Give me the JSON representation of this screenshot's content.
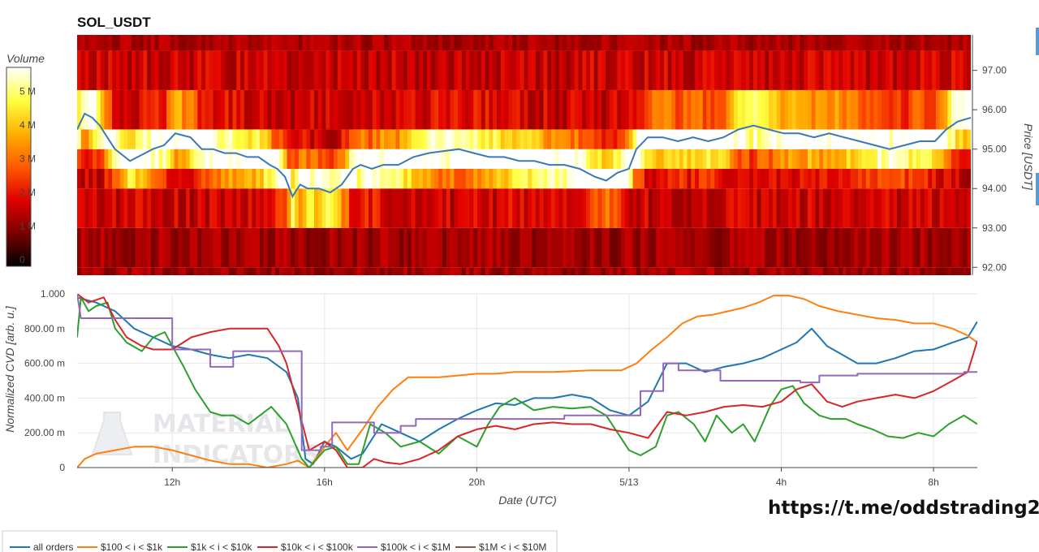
{
  "link_text": "https://t.me/oddstrading2",
  "watermark": {
    "line1": "MATERIAL",
    "line2": "INDICATORS"
  },
  "chart_data": [
    {
      "type": "heatmap",
      "title": "SOL_USDT",
      "ylabel": "Price [USDT]",
      "price_ticks": [
        "92.00",
        "93.00",
        "94.00",
        "95.00",
        "96.00",
        "97.00"
      ],
      "ylim": [
        91.8,
        97.9
      ],
      "price_bands": [
        92.0,
        93.0,
        94.0,
        94.5,
        95.0,
        95.5,
        96.5,
        97.5
      ],
      "colorbar": {
        "title": "Volume",
        "ticks": [
          {
            "value": 0,
            "label": "0"
          },
          {
            "value": 1,
            "label": "1 M"
          },
          {
            "value": 2,
            "label": "2 M"
          },
          {
            "value": 3,
            "label": "3 M"
          },
          {
            "value": 4,
            "label": "4 M"
          },
          {
            "value": 5,
            "label": "5 M"
          }
        ],
        "range": [
          0,
          5.9
        ],
        "colors": [
          "#000000",
          "#7a0000",
          "#e00000",
          "#ff5a00",
          "#ffb000",
          "#ffff40",
          "#ffffff"
        ]
      },
      "xlim": [
        9.5,
        33.15
      ],
      "price_line": {
        "color": "#3a79b6",
        "x": [
          9.5,
          9.7,
          9.9,
          10.1,
          10.3,
          10.5,
          10.7,
          10.9,
          11.1,
          11.3,
          11.5,
          11.8,
          12.1,
          12.5,
          12.8,
          13.1,
          13.4,
          13.7,
          14.0,
          14.3,
          14.6,
          14.8,
          15.0,
          15.2,
          15.4,
          15.6,
          15.9,
          16.2,
          16.5,
          16.8,
          17.0,
          17.3,
          17.6,
          18.0,
          18.4,
          18.8,
          19.2,
          19.6,
          20.0,
          20.4,
          20.8,
          21.2,
          21.6,
          22.0,
          22.4,
          22.8,
          23.2,
          23.5,
          23.8,
          24.1,
          24.3,
          24.6,
          25.0,
          25.4,
          25.8,
          26.2,
          26.6,
          27.0,
          27.4,
          27.8,
          28.2,
          28.6,
          29.0,
          29.4,
          29.8,
          30.2,
          30.6,
          31.0,
          31.4,
          31.8,
          32.2,
          32.5,
          32.8,
          33.15
        ],
        "y": [
          95.5,
          95.9,
          95.8,
          95.6,
          95.3,
          95.0,
          94.85,
          94.7,
          94.8,
          94.9,
          95.0,
          95.1,
          95.4,
          95.3,
          95.0,
          95.0,
          94.9,
          94.9,
          94.8,
          94.8,
          94.6,
          94.5,
          94.3,
          93.8,
          94.1,
          94.0,
          94.0,
          93.9,
          94.1,
          94.5,
          94.6,
          94.5,
          94.6,
          94.6,
          94.8,
          94.9,
          94.95,
          95.0,
          94.9,
          94.8,
          94.8,
          94.7,
          94.7,
          94.6,
          94.6,
          94.5,
          94.3,
          94.2,
          94.4,
          94.5,
          95.0,
          95.3,
          95.3,
          95.2,
          95.3,
          95.2,
          95.3,
          95.5,
          95.6,
          95.5,
          95.4,
          95.4,
          95.3,
          95.4,
          95.3,
          95.2,
          95.1,
          95.0,
          95.1,
          95.2,
          95.2,
          95.5,
          95.7,
          95.8
        ]
      }
    },
    {
      "type": "line",
      "xlabel": "Date (UTC)",
      "ylabel": "Normalized CVD [arb. u.]",
      "xlim": [
        9.5,
        33.15
      ],
      "ylim": [
        0,
        1
      ],
      "x_ticks": [
        {
          "value": 12,
          "label": "12h"
        },
        {
          "value": 16,
          "label": "16h"
        },
        {
          "value": 20,
          "label": "20h"
        },
        {
          "value": 24,
          "label": "5/13"
        },
        {
          "value": 28,
          "label": "4h"
        },
        {
          "value": 32,
          "label": "8h"
        }
      ],
      "y_ticks": [
        {
          "value": 0,
          "label": "0"
        },
        {
          "value": 0.2,
          "label": "200.00 m"
        },
        {
          "value": 0.4,
          "label": "400.00 m"
        },
        {
          "value": 0.6,
          "label": "600.00 m"
        },
        {
          "value": 0.8,
          "label": "800.00 m"
        },
        {
          "value": 1.0,
          "label": "1.000"
        }
      ],
      "series": [
        {
          "name": "all orders",
          "color": "#1f77b4",
          "x": [
            9.5,
            10.0,
            10.5,
            11.0,
            11.5,
            12.0,
            12.5,
            13.0,
            13.5,
            14.0,
            14.5,
            15.0,
            15.3,
            15.5,
            15.7,
            16.0,
            16.3,
            16.7,
            17.0,
            17.5,
            18.0,
            18.5,
            19.0,
            19.5,
            20.0,
            20.5,
            21.0,
            21.5,
            22.0,
            22.5,
            23.0,
            23.5,
            24.0,
            24.5,
            25.0,
            25.5,
            26.0,
            26.5,
            27.0,
            27.5,
            28.0,
            28.4,
            28.8,
            29.2,
            29.6,
            30.0,
            30.5,
            31.0,
            31.5,
            32.0,
            32.5,
            32.9,
            33.15
          ],
          "y": [
            0.98,
            0.95,
            0.9,
            0.8,
            0.75,
            0.7,
            0.68,
            0.65,
            0.63,
            0.65,
            0.63,
            0.55,
            0.4,
            0.05,
            0.02,
            0.15,
            0.12,
            0.05,
            0.08,
            0.25,
            0.2,
            0.15,
            0.22,
            0.28,
            0.33,
            0.37,
            0.36,
            0.4,
            0.4,
            0.42,
            0.4,
            0.33,
            0.3,
            0.38,
            0.6,
            0.6,
            0.55,
            0.58,
            0.6,
            0.63,
            0.68,
            0.72,
            0.8,
            0.7,
            0.65,
            0.6,
            0.6,
            0.63,
            0.67,
            0.68,
            0.72,
            0.75,
            0.84
          ]
        },
        {
          "name": "$100 < i < $1k",
          "color": "#ff7f0e",
          "x": [
            9.5,
            9.7,
            10.0,
            10.5,
            11.0,
            11.5,
            12.0,
            12.5,
            13.0,
            13.5,
            14.0,
            14.5,
            15.0,
            15.3,
            15.6,
            16.0,
            16.3,
            16.6,
            17.0,
            17.4,
            17.8,
            18.2,
            18.6,
            19.0,
            19.5,
            20.0,
            20.5,
            21.0,
            22.0,
            23.0,
            23.8,
            24.2,
            24.6,
            25.0,
            25.4,
            25.8,
            26.2,
            26.6,
            27.0,
            27.4,
            27.8,
            28.2,
            28.6,
            29.0,
            29.5,
            30.0,
            30.5,
            31.0,
            31.5,
            32.0,
            32.5,
            32.9,
            33.15
          ],
          "y": [
            0.0,
            0.05,
            0.08,
            0.1,
            0.12,
            0.12,
            0.1,
            0.07,
            0.04,
            0.02,
            0.02,
            0.0,
            0.02,
            0.04,
            0.0,
            0.12,
            0.2,
            0.1,
            0.22,
            0.35,
            0.45,
            0.52,
            0.52,
            0.52,
            0.53,
            0.54,
            0.54,
            0.55,
            0.55,
            0.56,
            0.56,
            0.6,
            0.68,
            0.75,
            0.83,
            0.87,
            0.88,
            0.9,
            0.92,
            0.95,
            0.99,
            0.99,
            0.97,
            0.93,
            0.9,
            0.88,
            0.86,
            0.85,
            0.83,
            0.83,
            0.8,
            0.76,
            0.72
          ]
        },
        {
          "name": "$1k < i < $10k",
          "color": "#2ca02c",
          "x": [
            9.5,
            9.6,
            9.8,
            10.0,
            10.3,
            10.5,
            10.8,
            11.2,
            11.5,
            11.8,
            12.0,
            12.3,
            12.6,
            13.0,
            13.3,
            13.6,
            14.0,
            14.3,
            14.6,
            15.0,
            15.2,
            15.4,
            15.6,
            16.0,
            16.3,
            16.6,
            16.9,
            17.2,
            17.6,
            18.0,
            18.5,
            19.0,
            19.5,
            20.0,
            20.3,
            20.6,
            21.0,
            21.5,
            22.0,
            22.5,
            23.0,
            23.4,
            23.7,
            24.0,
            24.3,
            24.7,
            25.0,
            25.3,
            25.7,
            26.0,
            26.3,
            26.7,
            27.0,
            27.3,
            27.7,
            28.0,
            28.3,
            28.6,
            29.0,
            29.3,
            29.7,
            30.0,
            30.4,
            30.8,
            31.2,
            31.6,
            32.0,
            32.4,
            32.8,
            33.15
          ],
          "y": [
            0.75,
            0.98,
            0.9,
            0.93,
            0.95,
            0.8,
            0.72,
            0.67,
            0.75,
            0.78,
            0.7,
            0.58,
            0.45,
            0.32,
            0.3,
            0.3,
            0.25,
            0.3,
            0.35,
            0.25,
            0.15,
            0.05,
            0.0,
            0.1,
            0.12,
            0.02,
            0.02,
            0.25,
            0.2,
            0.12,
            0.15,
            0.08,
            0.18,
            0.12,
            0.25,
            0.35,
            0.4,
            0.33,
            0.35,
            0.34,
            0.35,
            0.3,
            0.2,
            0.1,
            0.07,
            0.12,
            0.3,
            0.32,
            0.25,
            0.15,
            0.3,
            0.2,
            0.25,
            0.15,
            0.35,
            0.45,
            0.47,
            0.37,
            0.3,
            0.28,
            0.28,
            0.25,
            0.22,
            0.18,
            0.17,
            0.2,
            0.18,
            0.25,
            0.3,
            0.25
          ]
        },
        {
          "name": "$10k < i < $100k",
          "color": "#d62728",
          "x": [
            9.5,
            9.8,
            10.2,
            10.5,
            10.8,
            11.2,
            11.5,
            12.0,
            12.5,
            13.0,
            13.5,
            14.0,
            14.5,
            14.8,
            15.0,
            15.3,
            15.6,
            16.0,
            16.3,
            16.6,
            17.0,
            17.3,
            17.6,
            18.0,
            18.5,
            19.0,
            19.5,
            20.0,
            20.5,
            21.0,
            21.5,
            22.0,
            22.5,
            23.0,
            23.5,
            24.0,
            24.5,
            25.0,
            25.5,
            26.0,
            26.5,
            27.0,
            27.5,
            28.0,
            28.4,
            28.8,
            29.2,
            29.6,
            30.0,
            30.5,
            31.0,
            31.5,
            32.0,
            32.5,
            32.9,
            33.15
          ],
          "y": [
            1.0,
            0.95,
            0.98,
            0.85,
            0.75,
            0.7,
            0.68,
            0.68,
            0.75,
            0.78,
            0.8,
            0.8,
            0.8,
            0.7,
            0.6,
            0.35,
            0.1,
            0.15,
            0.1,
            0.0,
            0.0,
            0.05,
            0.03,
            0.02,
            0.05,
            0.1,
            0.18,
            0.22,
            0.24,
            0.22,
            0.25,
            0.26,
            0.25,
            0.25,
            0.22,
            0.2,
            0.17,
            0.32,
            0.3,
            0.32,
            0.35,
            0.36,
            0.35,
            0.38,
            0.45,
            0.48,
            0.38,
            0.35,
            0.38,
            0.4,
            0.42,
            0.4,
            0.44,
            0.5,
            0.55,
            0.73
          ]
        },
        {
          "name": "$100k < i < $1M",
          "color": "#9467bd",
          "x": [
            9.5,
            9.6,
            10.8,
            10.8,
            12.0,
            12.0,
            13.0,
            13.0,
            13.6,
            13.6,
            15.4,
            15.4,
            15.9,
            15.9,
            16.2,
            16.2,
            17.3,
            17.3,
            18.0,
            18.0,
            18.4,
            18.4,
            22.3,
            22.3,
            24.3,
            24.3,
            24.9,
            24.9,
            25.3,
            25.3,
            26.4,
            26.4,
            27.7,
            27.7,
            28.5,
            28.5,
            29.0,
            29.0,
            30.0,
            30.0,
            32.8,
            32.8,
            33.15
          ],
          "y": [
            1.0,
            0.86,
            0.86,
            0.86,
            0.86,
            0.68,
            0.68,
            0.58,
            0.58,
            0.67,
            0.67,
            0.1,
            0.1,
            0.12,
            0.12,
            0.26,
            0.26,
            0.2,
            0.2,
            0.24,
            0.24,
            0.28,
            0.28,
            0.3,
            0.3,
            0.44,
            0.44,
            0.6,
            0.6,
            0.56,
            0.56,
            0.5,
            0.5,
            0.5,
            0.5,
            0.49,
            0.49,
            0.53,
            0.53,
            0.54,
            0.54,
            0.55,
            0.55
          ]
        },
        {
          "name": "$1M < i < $10M",
          "color": "#8c564b",
          "x": [],
          "y": []
        }
      ]
    }
  ]
}
